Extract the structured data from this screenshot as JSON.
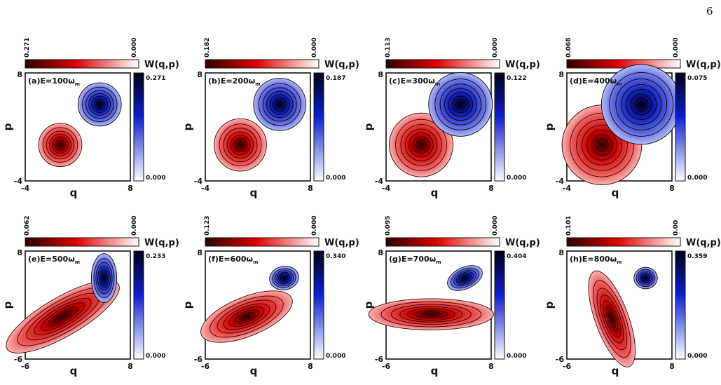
{
  "page_number": "6",
  "colorbar_label": "W(q,p)",
  "axis_labels": {
    "x": "q",
    "y": "p"
  },
  "colors": {
    "red_max": "#2a0000",
    "red_mid": "#e00000",
    "blue_max": "#000014",
    "blue_mid": "#0a1ed2"
  },
  "panels": [
    {
      "label": "(a)",
      "energy": "E=100",
      "unit": "ω",
      "sub": "m",
      "red_bar": {
        "max": "0.271",
        "min": "0.000"
      },
      "blue_bar": {
        "max": "0.271",
        "min": "0.000"
      },
      "x_ticks": [
        "-4",
        "8"
      ],
      "y_ticks": [
        "8",
        "-4"
      ],
      "xlim": [
        -4,
        8
      ],
      "ylim": [
        -4,
        8
      ],
      "red_state": {
        "center": [
          0.0,
          0.0
        ],
        "sd": [
          0.95,
          0.95
        ],
        "angle": 0
      },
      "blue_state": {
        "center": [
          4.5,
          4.5
        ],
        "sd": [
          0.95,
          0.95
        ],
        "angle": 0
      }
    },
    {
      "label": "(b)",
      "energy": "E=200",
      "unit": "ω",
      "sub": "m",
      "red_bar": {
        "max": "0.182",
        "min": "0.000"
      },
      "blue_bar": {
        "max": "0.187",
        "min": "0.000"
      },
      "x_ticks": [
        "-4",
        "8"
      ],
      "y_ticks": [
        "8",
        "-4"
      ],
      "xlim": [
        -4,
        8
      ],
      "ylim": [
        -4,
        8
      ],
      "red_state": {
        "center": [
          0.0,
          0.0
        ],
        "sd": [
          1.15,
          1.15
        ],
        "angle": 0
      },
      "blue_state": {
        "center": [
          4.5,
          4.5
        ],
        "sd": [
          1.15,
          1.15
        ],
        "angle": 0
      }
    },
    {
      "label": "(c)",
      "energy": "E=300",
      "unit": "ω",
      "sub": "m",
      "red_bar": {
        "max": "0.113",
        "min": "0.000"
      },
      "blue_bar": {
        "max": "0.122",
        "min": "0.000"
      },
      "x_ticks": [
        "-4",
        "8"
      ],
      "y_ticks": [
        "8",
        "-4"
      ],
      "xlim": [
        -4,
        8
      ],
      "ylim": [
        -4,
        8
      ],
      "red_state": {
        "center": [
          0.0,
          0.0
        ],
        "sd": [
          1.4,
          1.4
        ],
        "angle": 0
      },
      "blue_state": {
        "center": [
          4.5,
          4.5
        ],
        "sd": [
          1.4,
          1.4
        ],
        "angle": 0
      }
    },
    {
      "label": "(d)",
      "energy": "E=400",
      "unit": "ω",
      "sub": "m",
      "red_bar": {
        "max": "0.068",
        "min": "0.000"
      },
      "blue_bar": {
        "max": "0.075",
        "min": "0.000"
      },
      "x_ticks": [
        "-4",
        "8"
      ],
      "y_ticks": [
        "8",
        "-4"
      ],
      "xlim": [
        -4,
        8
      ],
      "ylim": [
        -4,
        8
      ],
      "red_state": {
        "center": [
          0.0,
          0.0
        ],
        "sd": [
          1.75,
          1.75
        ],
        "angle": 0
      },
      "blue_state": {
        "center": [
          4.5,
          4.5
        ],
        "sd": [
          1.75,
          1.75
        ],
        "angle": 0
      }
    },
    {
      "label": "(e)",
      "energy": "E=500",
      "unit": "ω",
      "sub": "m",
      "red_bar": {
        "max": "0.062",
        "min": "0.000"
      },
      "blue_bar": {
        "max": "0.233",
        "min": "0.000"
      },
      "x_ticks": [
        "-6",
        "8"
      ],
      "y_ticks": [
        "8",
        "-6"
      ],
      "xlim": [
        -6,
        8
      ],
      "ylim": [
        -6,
        8
      ],
      "red_state": {
        "center": [
          -1.0,
          -0.5
        ],
        "sd": [
          3.3,
          1.0
        ],
        "angle": -30
      },
      "blue_state": {
        "center": [
          4.5,
          4.5
        ],
        "sd": [
          0.65,
          1.25
        ],
        "angle": 0
      }
    },
    {
      "label": "(f)",
      "energy": "E=600",
      "unit": "ω",
      "sub": "m",
      "red_bar": {
        "max": "0.123",
        "min": "0.000"
      },
      "blue_bar": {
        "max": "0.340",
        "min": "0.000"
      },
      "x_ticks": [
        "-6",
        "8"
      ],
      "y_ticks": [
        "8",
        "-6"
      ],
      "xlim": [
        -6,
        8
      ],
      "ylim": [
        -6,
        8
      ],
      "red_state": {
        "center": [
          -0.5,
          -0.5
        ],
        "sd": [
          2.5,
          1.0
        ],
        "angle": -22
      },
      "blue_state": {
        "center": [
          4.5,
          4.5
        ],
        "sd": [
          0.75,
          0.6
        ],
        "angle": -10
      }
    },
    {
      "label": "(g)",
      "energy": "E=700",
      "unit": "ω",
      "sub": "m",
      "red_bar": {
        "max": "0.095",
        "min": "0.000"
      },
      "blue_bar": {
        "max": "0.404",
        "min": "0.000"
      },
      "x_ticks": [
        "-6",
        "8"
      ],
      "y_ticks": [
        "8",
        "-6"
      ],
      "xlim": [
        -6,
        8
      ],
      "ylim": [
        -6,
        8
      ],
      "red_state": {
        "center": [
          0.0,
          -0.2
        ],
        "sd": [
          3.2,
          0.8
        ],
        "angle": 0
      },
      "blue_state": {
        "center": [
          4.5,
          4.5
        ],
        "sd": [
          0.95,
          0.55
        ],
        "angle": -25
      }
    },
    {
      "label": "(h)",
      "energy": "E=800",
      "unit": "ω",
      "sub": "m",
      "red_bar": {
        "max": "0.101",
        "min": "0.00"
      },
      "blue_bar": {
        "max": "0.359",
        "min": "0.000"
      },
      "x_ticks": [
        "-6",
        "8"
      ],
      "y_ticks": [
        "8",
        "-6"
      ],
      "xlim": [
        -6,
        8
      ],
      "ylim": [
        -6,
        8
      ],
      "red_state": {
        "center": [
          0.0,
          -0.8
        ],
        "sd": [
          0.85,
          2.6
        ],
        "angle": -20
      },
      "blue_state": {
        "center": [
          4.5,
          4.5
        ],
        "sd": [
          0.6,
          0.55
        ],
        "angle": 0
      }
    }
  ]
}
